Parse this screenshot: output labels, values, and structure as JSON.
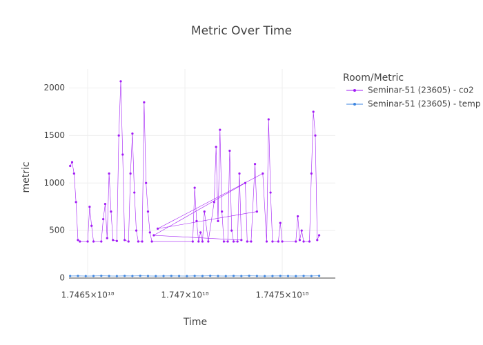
{
  "chart_data": {
    "type": "line",
    "title": "Metric Over Time",
    "x_label": "Time",
    "y_label": "metric",
    "legend_title": "Room/Metric",
    "legend_position": "right",
    "grid": true,
    "xlim": [
      1.746404e+18,
      1.747773e+18
    ],
    "xticks": [
      {
        "value": 1.7465e+18,
        "label": "1.7465×10¹⁸"
      },
      {
        "value": 1.747e+18,
        "label": "1.747×10¹⁸"
      },
      {
        "value": 1.7475e+18,
        "label": "1.7475×10¹⁸"
      }
    ],
    "ylim": [
      0,
      2200
    ],
    "yticks": [
      0,
      500,
      1000,
      1500,
      2000
    ],
    "series": [
      {
        "name": "Seminar-51 (23605) - co2",
        "color": "#a21cf5",
        "x": [
          1.74641e+18,
          1.74642e+18,
          1.74643e+18,
          1.74644e+18,
          1.74645e+18,
          1.74646e+18,
          1.7465e+18,
          1.74651e+18,
          1.74652e+18,
          1.74653e+18,
          1.74657e+18,
          1.74658e+18,
          1.74659e+18,
          1.7466e+18,
          1.74661e+18,
          1.74662e+18,
          1.74663e+18,
          1.74665e+18,
          1.74666e+18,
          1.74667e+18,
          1.74668e+18,
          1.74669e+18,
          1.74671e+18,
          1.74672e+18,
          1.74673e+18,
          1.74674e+18,
          1.74675e+18,
          1.74676e+18,
          1.74678e+18,
          1.74679e+18,
          1.7468e+18,
          1.74681e+18,
          1.74682e+18,
          1.74683e+18,
          1.74704e+18,
          1.74705e+18,
          1.74706e+18,
          1.74707e+18,
          1.74708e+18,
          1.74709e+18,
          1.7471e+18,
          1.74712e+18,
          1.74715e+18,
          1.74716e+18,
          1.74717e+18,
          1.74718e+18,
          1.74719e+18,
          1.7472e+18,
          1.74722e+18,
          1.74723e+18,
          1.74724e+18,
          1.74725e+18,
          1.74727e+18,
          1.74728e+18,
          1.74729e+18,
          1.74684e+18,
          1.74731e+18,
          1.74732e+18,
          1.74734e+18,
          1.74736e+18,
          1.74737e+18,
          1.74686e+18,
          1.7474e+18,
          1.74742e+18,
          1.74743e+18,
          1.74744e+18,
          1.74745e+18,
          1.74748e+18,
          1.74749e+18,
          1.7475e+18,
          1.74757e+18,
          1.74758e+18,
          1.74759e+18,
          1.7476e+18,
          1.74761e+18,
          1.74764e+18,
          1.74765e+18,
          1.74766e+18,
          1.74767e+18,
          1.74768e+18,
          1.74769e+18
        ],
        "values": [
          1180,
          1220,
          1100,
          800,
          400,
          385,
          385,
          750,
          550,
          385,
          385,
          620,
          780,
          420,
          1100,
          700,
          400,
          390,
          1500,
          2070,
          1300,
          400,
          385,
          1100,
          1520,
          900,
          500,
          385,
          385,
          1850,
          1000,
          700,
          480,
          385,
          385,
          950,
          600,
          385,
          480,
          385,
          700,
          385,
          800,
          1380,
          600,
          1560,
          700,
          385,
          385,
          1340,
          500,
          385,
          385,
          1100,
          400,
          450,
          1000,
          385,
          385,
          1200,
          700,
          520,
          1100,
          385,
          1670,
          900,
          385,
          385,
          580,
          385,
          385,
          650,
          400,
          500,
          385,
          385,
          1100,
          1750,
          1500,
          400,
          450
        ]
      },
      {
        "name": "Seminar-51 (23605) - temp",
        "color": "#3d85e0",
        "x": [
          1.74641e+18,
          1.74645e+18,
          1.74649e+18,
          1.74653e+18,
          1.74657e+18,
          1.74661e+18,
          1.74665e+18,
          1.74669e+18,
          1.74673e+18,
          1.74677e+18,
          1.74681e+18,
          1.74685e+18,
          1.74689e+18,
          1.74693e+18,
          1.74697e+18,
          1.74701e+18,
          1.74705e+18,
          1.74709e+18,
          1.74713e+18,
          1.74717e+18,
          1.74721e+18,
          1.74725e+18,
          1.74729e+18,
          1.74733e+18,
          1.74737e+18,
          1.74741e+18,
          1.74745e+18,
          1.74749e+18,
          1.74753e+18,
          1.74757e+18,
          1.74761e+18,
          1.74765e+18,
          1.74769e+18
        ],
        "values": [
          22,
          23,
          21,
          22,
          24,
          22,
          21,
          23,
          22,
          24,
          22,
          21,
          22,
          23,
          22,
          21,
          23,
          22,
          24,
          22,
          21,
          23,
          22,
          24,
          22,
          21,
          22,
          23,
          22,
          21,
          23,
          22,
          24
        ]
      }
    ]
  }
}
